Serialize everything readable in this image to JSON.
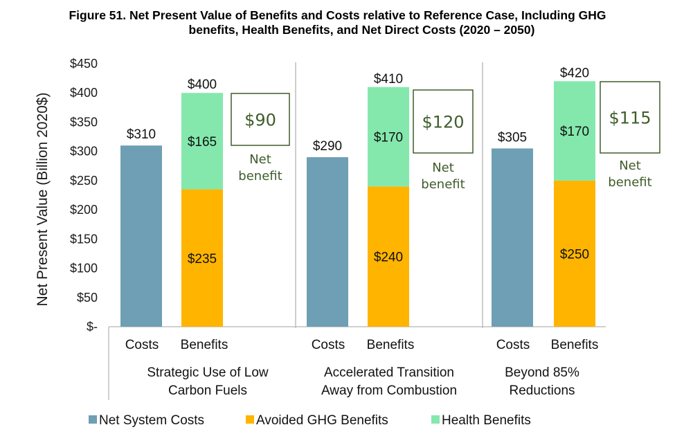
{
  "chart_data": {
    "type": "bar",
    "title_line1": "Figure 51. Net Present Value of Benefits and Costs relative to Reference Case, Including GHG",
    "title_line2": "benefits, Health Benefits, and Net Direct Costs (2020 – 2050)",
    "ylabel": "Net Present Value (Billion 2020$)",
    "ylim": [
      0,
      450
    ],
    "yticks": [
      0,
      50,
      100,
      150,
      200,
      250,
      300,
      350,
      400,
      450
    ],
    "ytick_labels": [
      "$-",
      "$50",
      "$100",
      "$150",
      "$200",
      "$250",
      "$300",
      "$350",
      "$400",
      "$450"
    ],
    "grid": false,
    "legend_position": "bottom",
    "series": [
      {
        "name": "Net System Costs",
        "color": "#6e9fb5"
      },
      {
        "name": "Avoided GHG Benefits",
        "color": "#ffb400"
      },
      {
        "name": "Health Benefits",
        "color": "#84e8ad"
      }
    ],
    "groups": [
      {
        "name_line1": "Strategic Use of Low",
        "name_line2": "Carbon Fuels",
        "costs_label": "Costs",
        "benefits_label": "Benefits",
        "net_system_costs": 310,
        "avoided_ghg_benefits": 235,
        "health_benefits": 165,
        "total_benefits": 400,
        "net_benefit": 90,
        "labels": {
          "costs": "$310",
          "ghg": "$235",
          "health": "$165",
          "total": "$400",
          "net": "$90"
        }
      },
      {
        "name_line1": "Accelerated Transition",
        "name_line2": "Away from Combustion",
        "costs_label": "Costs",
        "benefits_label": "Benefits",
        "net_system_costs": 290,
        "avoided_ghg_benefits": 240,
        "health_benefits": 170,
        "total_benefits": 410,
        "net_benefit": 120,
        "labels": {
          "costs": "$290",
          "ghg": "$240",
          "health": "$170",
          "total": "$410",
          "net": "$120"
        }
      },
      {
        "name_line1": "Beyond 85%",
        "name_line2": "Reductions",
        "costs_label": "Costs",
        "benefits_label": "Benefits",
        "net_system_costs": 305,
        "avoided_ghg_benefits": 250,
        "health_benefits": 170,
        "total_benefits": 420,
        "net_benefit": 115,
        "labels": {
          "costs": "$305",
          "ghg": "$250",
          "health": "$170",
          "total": "$420",
          "net": "$115"
        }
      }
    ],
    "net_benefit_caption_line1": "Net",
    "net_benefit_caption_line2": "benefit"
  }
}
